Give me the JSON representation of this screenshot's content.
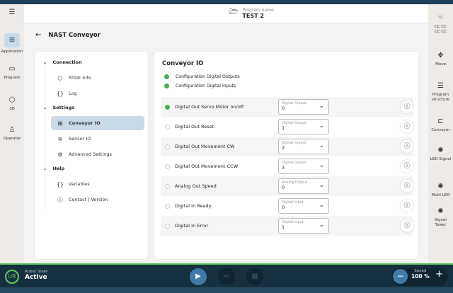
{
  "header": {
    "program_label": "Program name",
    "program_name": "TEST 2"
  },
  "left_rail": [
    {
      "label": "Application",
      "icon": "grid-icon"
    },
    {
      "label": "Program",
      "icon": "window-icon"
    },
    {
      "label": "3D",
      "icon": "cube-icon"
    },
    {
      "label": "Operator",
      "icon": "person-icon"
    }
  ],
  "right_rail": [
    {
      "label": "CC CC CC CC",
      "icon": "hand-icon"
    },
    {
      "label": "Move",
      "icon": "move-icon"
    },
    {
      "label": "Program structure",
      "icon": "list-icon"
    },
    {
      "label": "Conveyor",
      "icon": "conveyor-icon"
    },
    {
      "label": "LED Signal",
      "icon": "led-icon"
    },
    {
      "label": "Multi LED",
      "icon": "led-icon"
    },
    {
      "label": "Signal Tower",
      "icon": "led-icon"
    }
  ],
  "page_title": "NAST Conveyor",
  "nav": {
    "sections": [
      {
        "label": "Connection",
        "items": [
          {
            "label": "RTDE Info"
          },
          {
            "label": "Log"
          }
        ]
      },
      {
        "label": "Settings",
        "items": [
          {
            "label": "Conveyor IO"
          },
          {
            "label": "Sensor IO"
          },
          {
            "label": "Advanced Settings"
          }
        ]
      },
      {
        "label": "Help",
        "items": [
          {
            "label": "Variables"
          },
          {
            "label": "Contact | Version"
          }
        ]
      }
    ]
  },
  "io": {
    "title": "Conveyor IO",
    "config": [
      {
        "label": "Configuration Digital Outputs",
        "active": true
      },
      {
        "label": "Configuration Digital Inputs",
        "active": true
      }
    ],
    "rows": [
      {
        "name": "Digital Out Servo Motor on/off",
        "active": true,
        "select_label": "Digital Output",
        "value": "0"
      },
      {
        "name": "Digital Out Reset",
        "active": false,
        "select_label": "Digital Output",
        "value": "1"
      },
      {
        "name": "Digital Out Movement CW",
        "active": false,
        "select_label": "Digital Output",
        "value": "2"
      },
      {
        "name": "Digital Out Movement CCW",
        "active": false,
        "select_label": "Digital Output",
        "value": "3"
      },
      {
        "name": "Analog Out Speed",
        "active": false,
        "select_label": "Analog Output",
        "value": "0"
      },
      {
        "name": "Digital In Ready",
        "active": false,
        "select_label": "Digital Input",
        "value": "0"
      },
      {
        "name": "Digital In Error",
        "active": false,
        "select_label": "Digital Input",
        "value": "1"
      }
    ]
  },
  "footer": {
    "robot_state_label": "Robot State",
    "robot_state": "Active",
    "speed_label": "Speed",
    "speed": "100 %"
  },
  "colors": {
    "accent": "#3f7aa8",
    "active_green": "#4caf50",
    "bar": "#17303f"
  }
}
